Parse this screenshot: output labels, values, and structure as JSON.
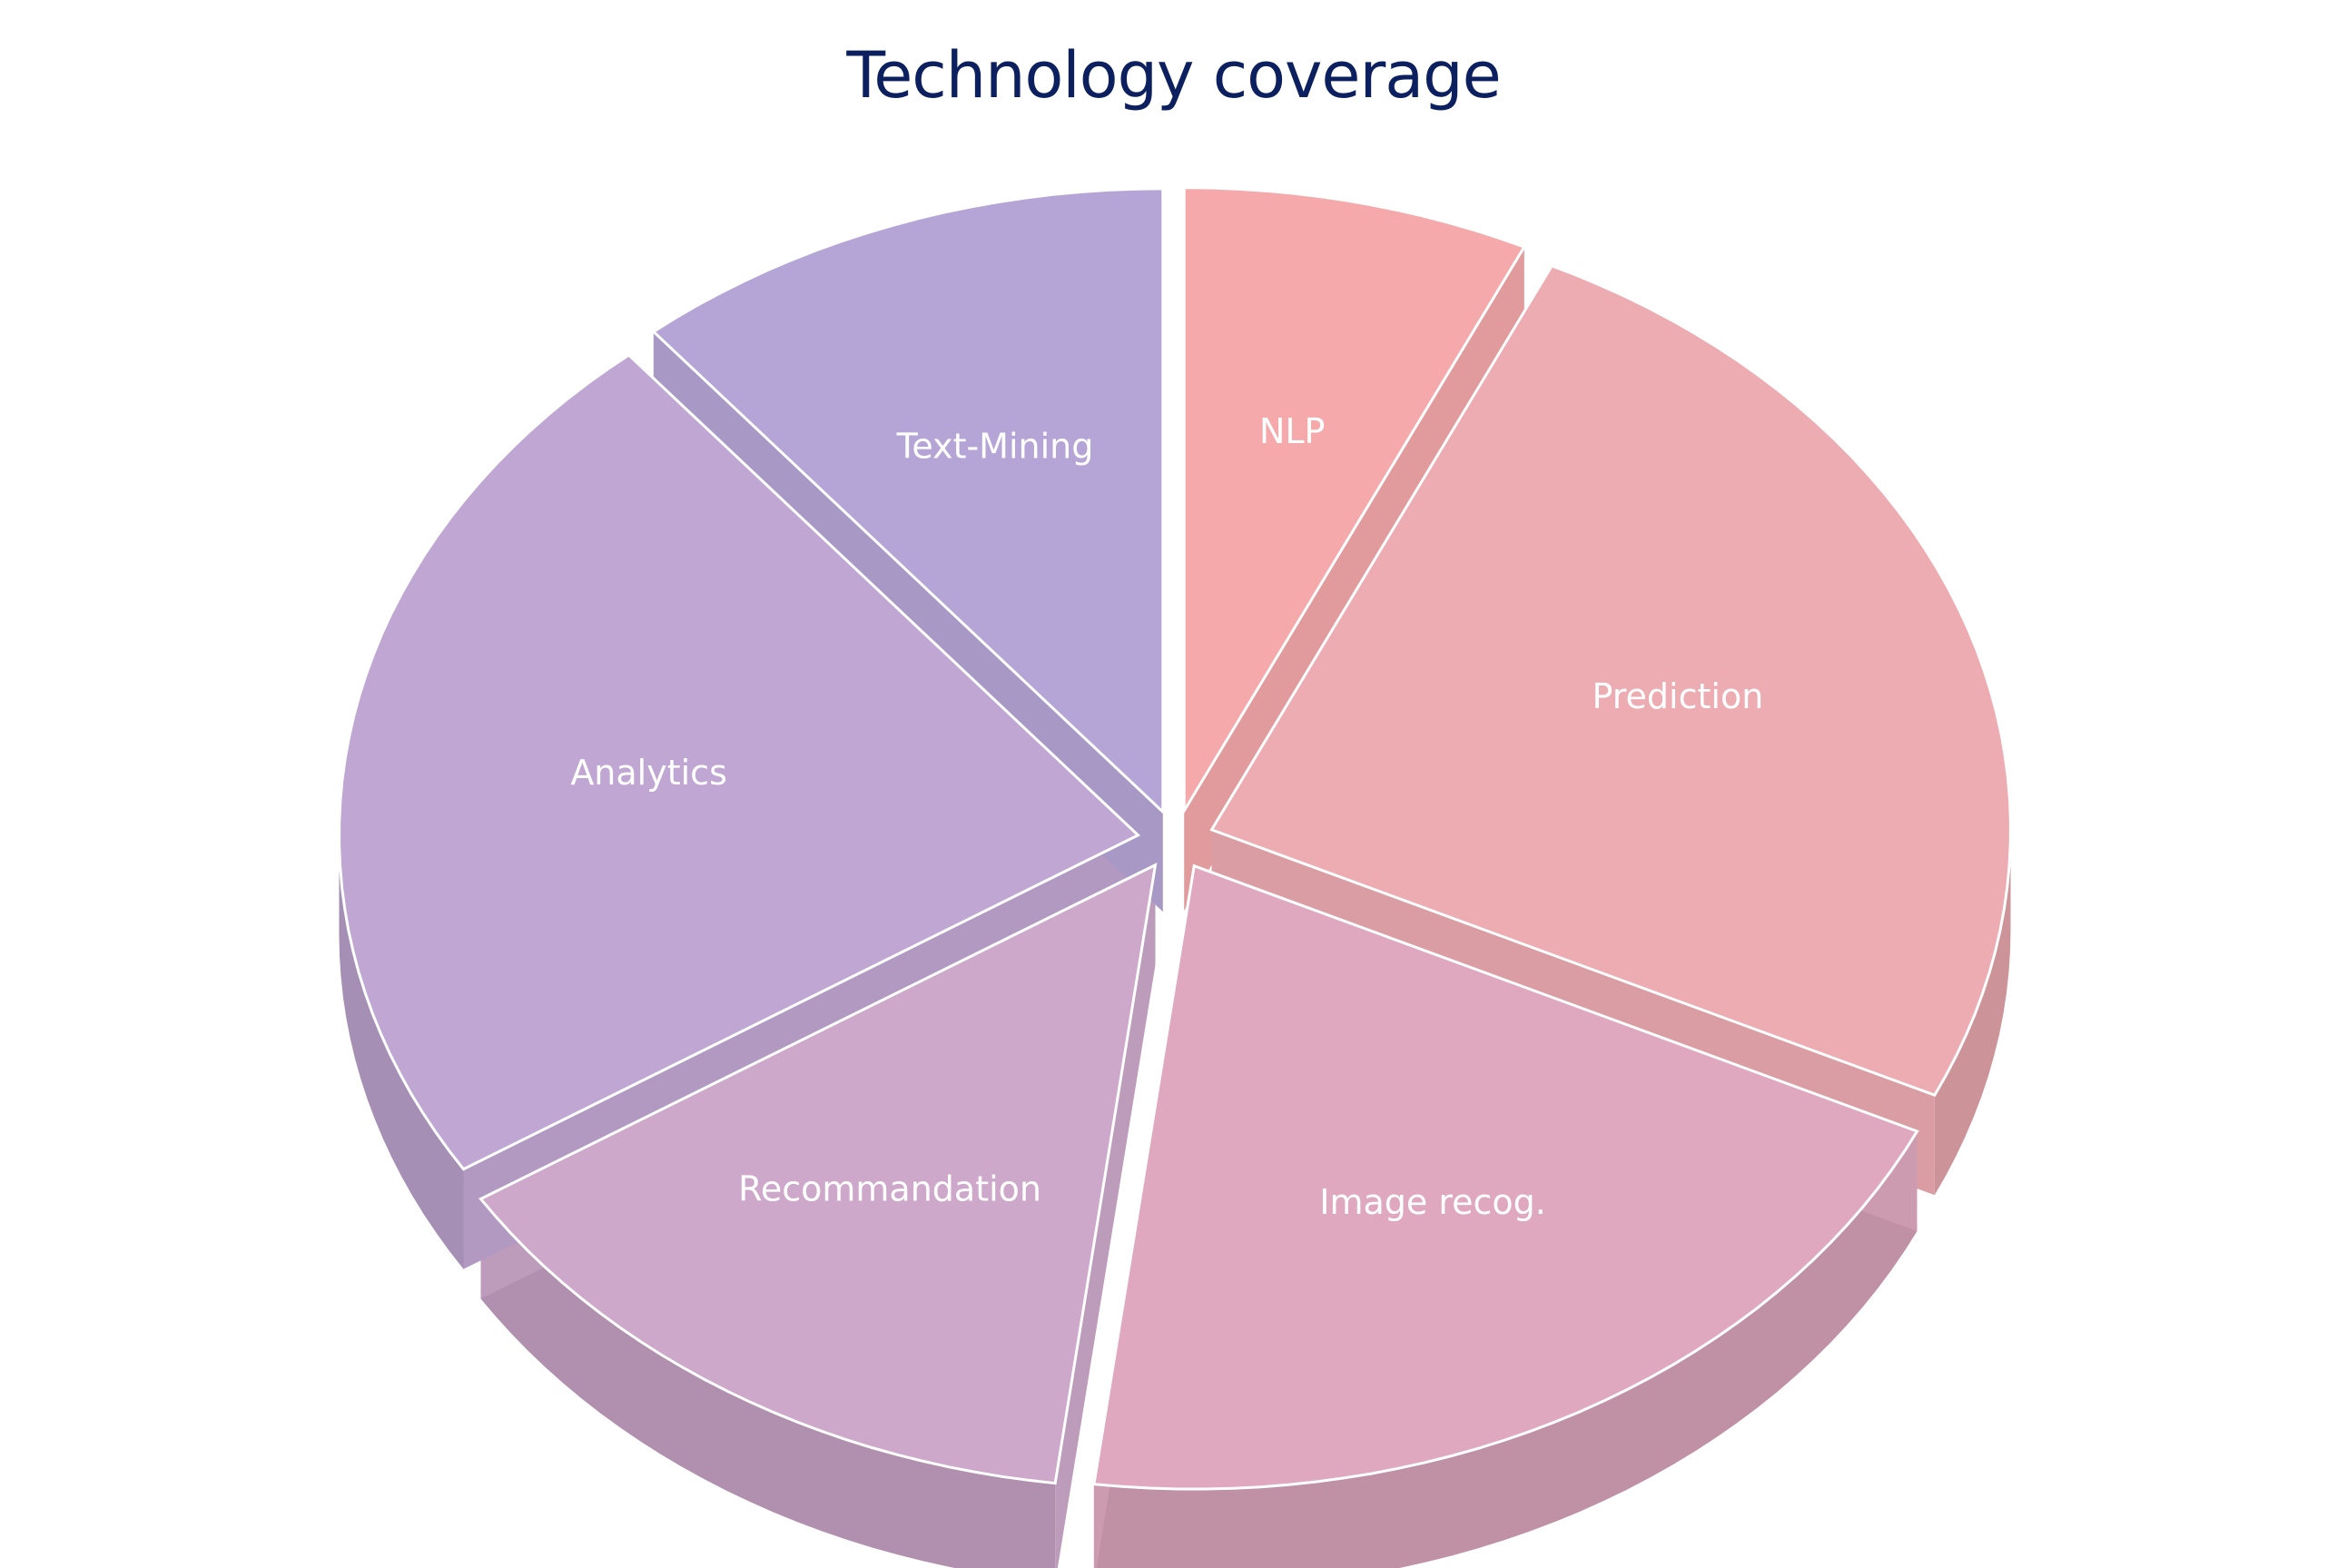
{
  "chart_data": {
    "type": "pie",
    "title": "Technology coverage",
    "exploded": true,
    "style": "3d",
    "slices": [
      {
        "label": "NLP",
        "value": 7,
        "color": "#f5a9aa"
      },
      {
        "label": "Prediction",
        "value": 25,
        "color": "#edabb2"
      },
      {
        "label": "Image recog.",
        "value": 20,
        "color": "#dfa8bf"
      },
      {
        "label": "Recommandation",
        "value": 14,
        "color": "#cda8ca"
      },
      {
        "label": "Analytics",
        "value": 23,
        "color": "#c0a6d3"
      },
      {
        "label": "Text-Mining",
        "value": 11,
        "color": "#b5a5d7"
      }
    ]
  }
}
